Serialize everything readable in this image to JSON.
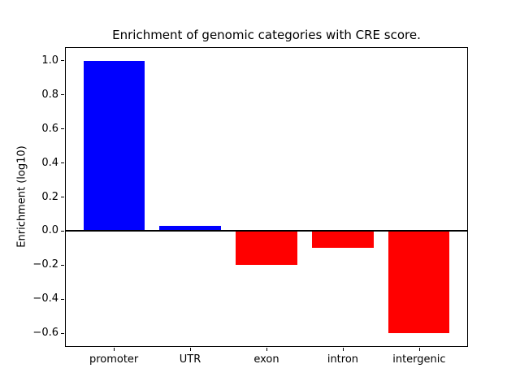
{
  "title": "Enrichment of genomic categories with CRE score.",
  "chart_data": {
    "type": "bar",
    "title": "Enrichment of genomic categories with CRE score.",
    "categories": [
      "promoter",
      "UTR",
      "exon",
      "intron",
      "intergenic"
    ],
    "values": [
      1.0,
      0.03,
      -0.2,
      -0.1,
      -0.6
    ],
    "colors": [
      "#0000ff",
      "#0000ff",
      "#ff0000",
      "#ff0000",
      "#ff0000"
    ],
    "positive_color": "#0000ff",
    "negative_color": "#ff0000",
    "xlabel": "",
    "ylabel": "Enrichment (log10)",
    "ylim": [
      -0.68,
      1.08
    ],
    "yticks": [
      1.0,
      0.8,
      0.6,
      0.4,
      0.2,
      0.0,
      -0.2,
      -0.4,
      -0.6
    ],
    "grid": false,
    "legend": false,
    "zero_line": true
  }
}
